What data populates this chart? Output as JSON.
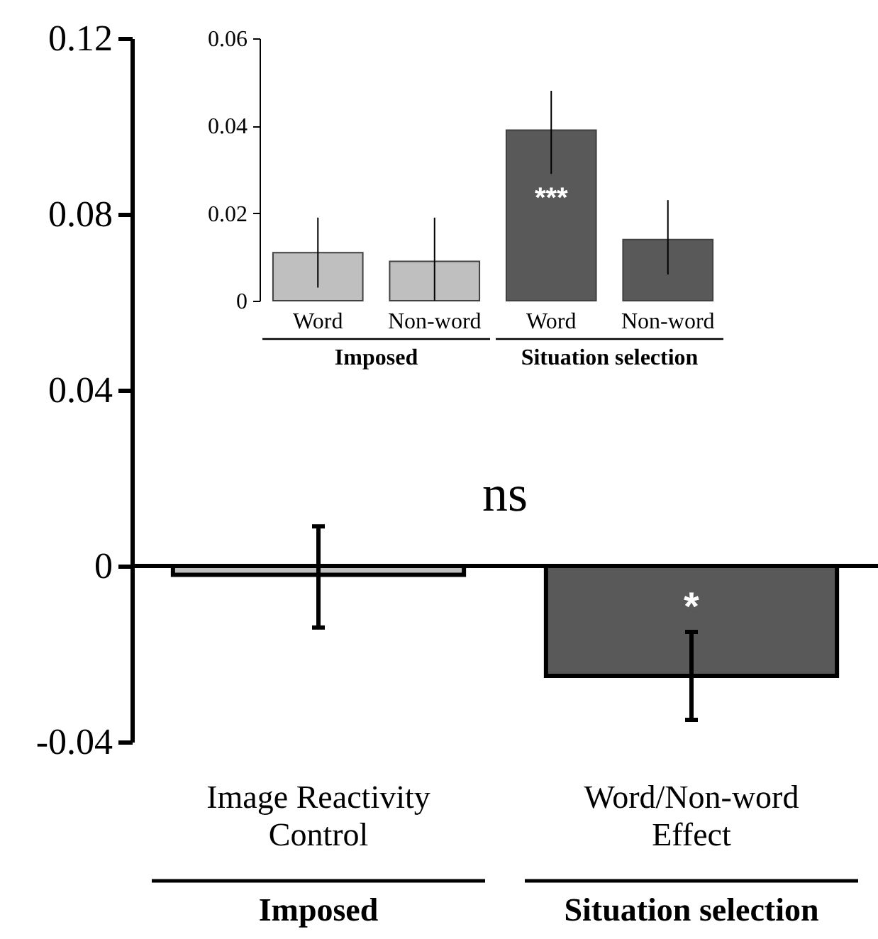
{
  "chart_data": [
    {
      "type": "bar",
      "categories": [
        "Image Reactivity Control",
        "Word/Non-word Effect"
      ],
      "values": [
        -0.002,
        -0.025
      ],
      "colors": [
        "#bfbfbf",
        "#595959"
      ],
      "errors": [
        [
          -0.014,
          0.009
        ],
        [
          -0.035,
          -0.015
        ]
      ],
      "value_labels": [
        null,
        "*"
      ],
      "ylim": [
        -0.04,
        0.12
      ],
      "yticks": [
        -0.04,
        0,
        0.04,
        0.08,
        0.12
      ],
      "ref_lines": [
        {
          "axis": "y",
          "value": 0,
          "color": "#000000"
        }
      ],
      "annotations": [
        "ns",
        "Imposed",
        "Situation selection"
      ]
    },
    {
      "type": "bar",
      "categories": [
        "Word",
        "Non-word",
        "Word",
        "Non-word"
      ],
      "values": [
        0.011,
        0.009,
        0.039,
        0.014
      ],
      "colors": [
        "#bfbfbf",
        "#bfbfbf",
        "#595959",
        "#595959"
      ],
      "errors": [
        [
          0.003,
          0.019
        ],
        [
          0,
          0.019
        ],
        [
          0.029,
          0.048
        ],
        [
          0.006,
          0.023
        ]
      ],
      "value_labels": [
        null,
        null,
        "***",
        null
      ],
      "ylim": [
        0,
        0.06
      ],
      "yticks": [
        0,
        0.02,
        0.04,
        0.06
      ],
      "annotations": [
        "Imposed",
        "Situation selection"
      ]
    }
  ]
}
